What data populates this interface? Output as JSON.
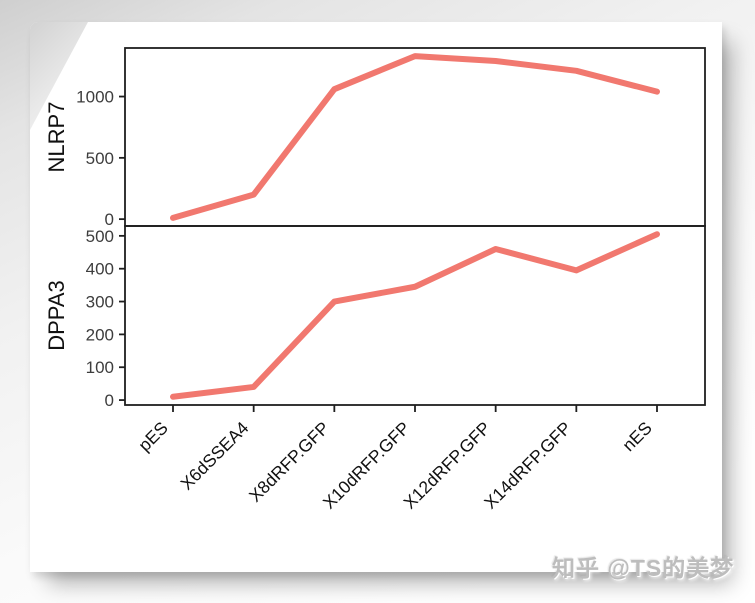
{
  "watermark": {
    "text": "知乎 @TS的美梦"
  },
  "colors": {
    "line": "#F1786F",
    "panel_border": "#1f1f1f",
    "tick_text": "#3d3d3d",
    "axis_title": "#111111",
    "page_bg": "#ffffff",
    "canvas_bg": "#ededed",
    "watermark": "#bdbdbd"
  },
  "chart_data": {
    "type": "line",
    "line_color": "#F1786F",
    "grid": false,
    "legend": "none",
    "categories": [
      "pES",
      "X6dSSEA4",
      "X8dRFP.GFP",
      "X10dRFP.GFP",
      "X12dRFP.GFP",
      "X14dRFP.GFP",
      "nES"
    ],
    "facets": [
      {
        "ylabel": "NLRP7",
        "values": [
          10,
          200,
          1060,
          1330,
          1290,
          1210,
          1040
        ],
        "yticks": [
          0,
          500,
          1000
        ],
        "ylim": [
          -56,
          1396
        ]
      },
      {
        "ylabel": "DPPA3",
        "values": [
          10,
          40,
          300,
          345,
          460,
          395,
          505
        ],
        "yticks": [
          0,
          100,
          200,
          300,
          400,
          500
        ],
        "ylim": [
          -15,
          530
        ]
      }
    ]
  }
}
